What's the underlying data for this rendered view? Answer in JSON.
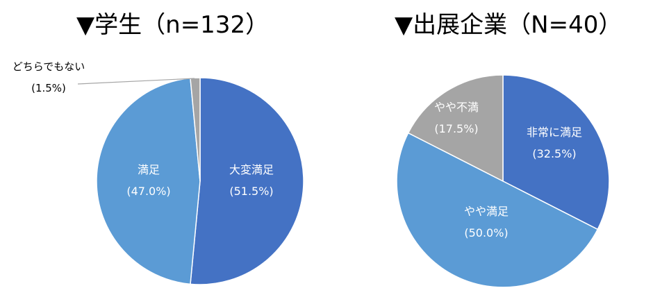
{
  "chart_data": [
    {
      "type": "pie",
      "title": "▼学生（n=132）",
      "slices": [
        {
          "label": "大変満足",
          "pct_label": "(51.5%)",
          "value": 51.5,
          "color": "#4472c4"
        },
        {
          "label": "満足",
          "pct_label": "(47.0%)",
          "value": 47.0,
          "color": "#5b9bd5"
        },
        {
          "label": "どちらでもない",
          "pct_label": "(1.5%)",
          "value": 1.5,
          "color": "#a5a5a5"
        }
      ]
    },
    {
      "type": "pie",
      "title": "▼出展企業（N=40）",
      "slices": [
        {
          "label": "非常に満足",
          "pct_label": "(32.5%)",
          "value": 32.5,
          "color": "#4472c4"
        },
        {
          "label": "やや満足",
          "pct_label": "(50.0%)",
          "value": 50.0,
          "color": "#5b9bd5"
        },
        {
          "label": "やや不満",
          "pct_label": "(17.5%)",
          "value": 17.5,
          "color": "#a5a5a5"
        }
      ]
    }
  ]
}
